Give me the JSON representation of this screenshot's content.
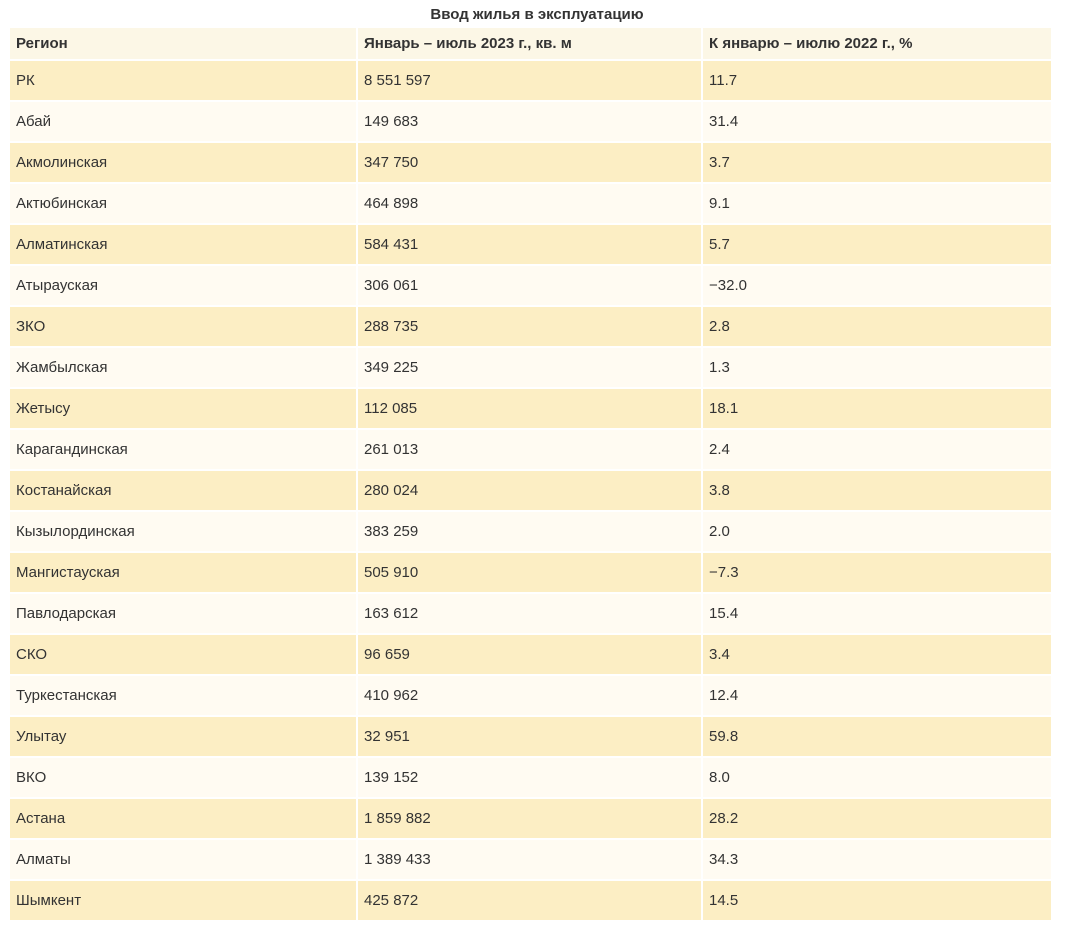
{
  "title": "Ввод жилья в эксплуатацию",
  "chart_data": {
    "type": "table",
    "title": "Ввод жилья в эксплуатацию",
    "columns": [
      "Регион",
      "Январь – июль 2023 г., кв. м",
      "К январю – июлю 2022 г., %"
    ],
    "rows": [
      [
        "РК",
        "8 551 597",
        "11.7"
      ],
      [
        "Абай",
        "149 683",
        "31.4"
      ],
      [
        "Акмолинская",
        "347 750",
        "3.7"
      ],
      [
        "Актюбинская",
        "464 898",
        "9.1"
      ],
      [
        "Алматинская",
        "584 431",
        "5.7"
      ],
      [
        "Атырауская",
        "306 061",
        "−32.0"
      ],
      [
        "ЗКО",
        "288 735",
        "2.8"
      ],
      [
        "Жамбылская",
        "349 225",
        "1.3"
      ],
      [
        "Жетысу",
        "112 085",
        "18.1"
      ],
      [
        "Карагандинская",
        "261 013",
        "2.4"
      ],
      [
        "Костанайская",
        "280 024",
        "3.8"
      ],
      [
        "Кызылординская",
        "383 259",
        "2.0"
      ],
      [
        "Мангистауская",
        "505 910",
        "−7.3"
      ],
      [
        "Павлодарская",
        "163 612",
        "15.4"
      ],
      [
        "СКО",
        "96 659",
        "3.4"
      ],
      [
        "Туркестанская",
        "410 962",
        "12.4"
      ],
      [
        "Улытау",
        "32 951",
        "59.8"
      ],
      [
        "ВКО",
        "139 152",
        "8.0"
      ],
      [
        "Астана",
        "1 859 882",
        "28.2"
      ],
      [
        "Алматы",
        "1 389 433",
        "34.3"
      ],
      [
        "Шымкент",
        "425 872",
        "14.5"
      ]
    ]
  },
  "colors": {
    "row_odd": "#fceec4",
    "row_even": "#fffbf2",
    "header_bg": "#fcf7e6",
    "text": "#333333",
    "page_bg": "#ffffff"
  }
}
